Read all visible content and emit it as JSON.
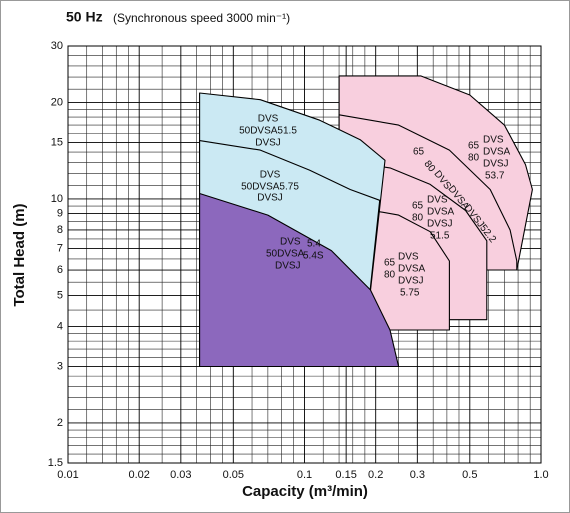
{
  "chart_data": {
    "type": "region",
    "title": "50 Hz",
    "subtitle": "(Synchronous speed  3000 min⁻¹)",
    "x_label": "Capacity (m³/min)",
    "y_label": "Total Head (m)",
    "xscale": "log",
    "yscale": "log",
    "grid": true,
    "xlim": [
      0.01,
      1
    ],
    "ylim": [
      1.5,
      30
    ],
    "xticks": [
      0.01,
      0.02,
      0.03,
      0.05,
      0.1,
      0.15,
      0.2,
      0.3,
      0.5,
      {
        "value": 1,
        "label": "1.0"
      }
    ],
    "yticks": [
      1.5,
      2,
      3,
      4,
      5,
      6,
      7,
      8,
      9,
      10,
      15,
      20,
      30
    ],
    "xminor": [
      0.012,
      0.014,
      0.016,
      0.018,
      0.025,
      0.035,
      0.04,
      0.045,
      0.06,
      0.07,
      0.08,
      0.09,
      0.12,
      0.14,
      0.16,
      0.18,
      0.25,
      0.35,
      0.4,
      0.45,
      0.6,
      0.7,
      0.8,
      0.9
    ],
    "yminor": [
      1.6,
      1.7,
      1.8,
      1.9,
      2.2,
      2.4,
      2.6,
      2.8,
      3.2,
      3.4,
      3.6,
      3.8,
      4.5,
      5.5,
      6.5,
      7.5,
      8.5,
      9.5,
      11,
      12,
      13,
      14,
      16,
      17,
      18,
      19,
      22,
      24,
      26,
      28
    ],
    "regions": [
      {
        "color": "#f8cfde",
        "x": [
          0.14,
          0.31,
          0.5,
          0.7,
          0.86,
          0.92,
          0.79,
          0.14
        ],
        "y": [
          24.2,
          24.2,
          21.1,
          17.0,
          12.8,
          10.7,
          6.0,
          6.0
        ],
        "labels": [
          "65",
          "80",
          "DVS",
          "DVSA",
          "DVSJ",
          "53.7"
        ]
      },
      {
        "color": "#f8cfde",
        "x": [
          0.14,
          0.25,
          0.41,
          0.61,
          0.74,
          0.79,
          0.79,
          0.14
        ],
        "y": [
          18.3,
          17.0,
          14.2,
          10.7,
          8.0,
          6.4,
          6.0,
          6.0
        ],
        "labels": [
          "65",
          "80",
          "DVS",
          "DVSA",
          "DVSJ52.2"
        ]
      },
      {
        "color": "#f8cfde",
        "x": [
          0.14,
          0.23,
          0.34,
          0.48,
          0.59,
          0.59,
          0.14
        ],
        "y": [
          13.2,
          12.5,
          11.1,
          9.2,
          7.4,
          4.2,
          4.2
        ],
        "labels": [
          "65",
          "80",
          "DVS",
          "DVSA",
          "DVSJ",
          "51.5"
        ]
      },
      {
        "color": "#f8cfde",
        "x": [
          0.14,
          0.25,
          0.34,
          0.41,
          0.41,
          0.14
        ],
        "y": [
          9.6,
          8.9,
          7.9,
          6.4,
          3.9,
          3.9
        ],
        "labels": [
          "65",
          "80",
          "DVS",
          "DVSA",
          "DVSJ",
          "5.75"
        ]
      },
      {
        "color": "#cbe9f3",
        "x": [
          0.036,
          0.036,
          0.065,
          0.116,
          0.172,
          0.219,
          0.175
        ],
        "y": [
          3,
          21.4,
          20.4,
          17.6,
          15.3,
          13.2,
          3
        ],
        "labels": [
          "DVS",
          "50DVSA51.5",
          "DVSJ"
        ]
      },
      {
        "color": "#cbe9f3",
        "x": [
          0.036,
          0.036,
          0.065,
          0.105,
          0.156,
          0.208,
          0.175
        ],
        "y": [
          3,
          15.2,
          14.2,
          12.3,
          10.7,
          9.9,
          3
        ],
        "labels": [
          "DVS",
          "50DVSA5.75",
          "DVSJ"
        ]
      },
      {
        "color": "#8c68bd",
        "x": [
          0.036,
          0.036,
          0.07,
          0.13,
          0.19,
          0.23,
          0.25
        ],
        "y": [
          3,
          10.4,
          8.9,
          6.9,
          5.2,
          3.9,
          3.0
        ],
        "labels": [
          "DVS",
          "5.4",
          "50DVSA",
          "5.4S",
          "DVSJ"
        ]
      }
    ]
  }
}
